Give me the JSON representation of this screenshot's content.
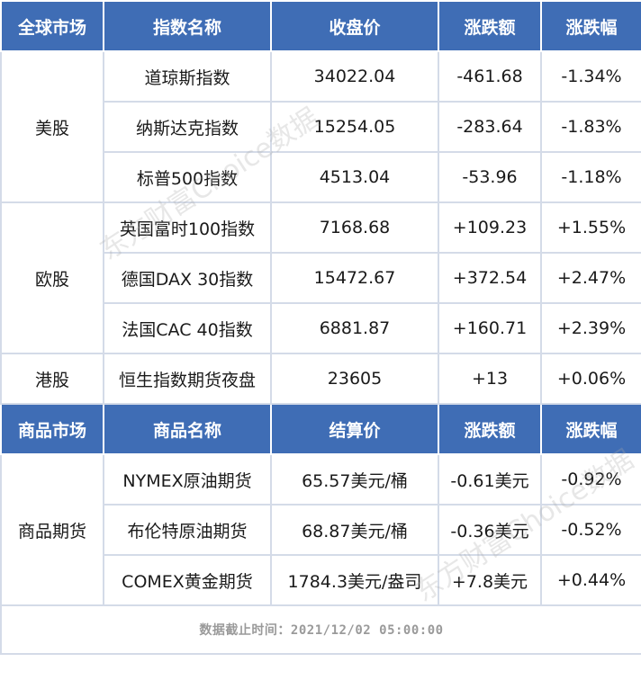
{
  "headers1": [
    "全球市场",
    "指数名称",
    "收盘价",
    "涨跌额",
    "涨跌幅"
  ],
  "groups1": [
    {
      "label": "美股",
      "rows": [
        [
          "道琼斯指数",
          "34022.04",
          "-461.68",
          "-1.34%"
        ],
        [
          "纳斯达克指数",
          "15254.05",
          "-283.64",
          "-1.83%"
        ],
        [
          "标普500指数",
          "4513.04",
          "-53.96",
          "-1.18%"
        ]
      ]
    },
    {
      "label": "欧股",
      "rows": [
        [
          "英国富时100指数",
          "7168.68",
          "+109.23",
          "+1.55%"
        ],
        [
          "德国DAX 30指数",
          "15472.67",
          "+372.54",
          "+2.47%"
        ],
        [
          "法国CAC 40指数",
          "6881.87",
          "+160.71",
          "+2.39%"
        ]
      ]
    },
    {
      "label": "港股",
      "rows": [
        [
          "恒生指数期货夜盘",
          "23605",
          "+13",
          "+0.06%"
        ]
      ]
    }
  ],
  "headers2": [
    "商品市场",
    "商品名称",
    "结算价",
    "涨跌额",
    "涨跌幅"
  ],
  "groups2": [
    {
      "label": "商品期货",
      "rows": [
        [
          "NYMEX原油期货",
          "65.57美元/桶",
          "-0.61美元",
          "-0.92%"
        ],
        [
          "布伦特原油期货",
          "68.87美元/桶",
          "-0.36美元",
          "-0.52%"
        ],
        [
          "COMEX黄金期货",
          "1784.3美元/盎司",
          "+7.8美元",
          "+0.44%"
        ]
      ]
    }
  ],
  "footer": "数据截止时间：2021/12/02 05:00:00",
  "watermark": [
    "东方财富Choice数据",
    "东方财富Choice数据"
  ],
  "colors": {
    "header_bg": "#3f6db5",
    "border": "#d4dbe8"
  }
}
